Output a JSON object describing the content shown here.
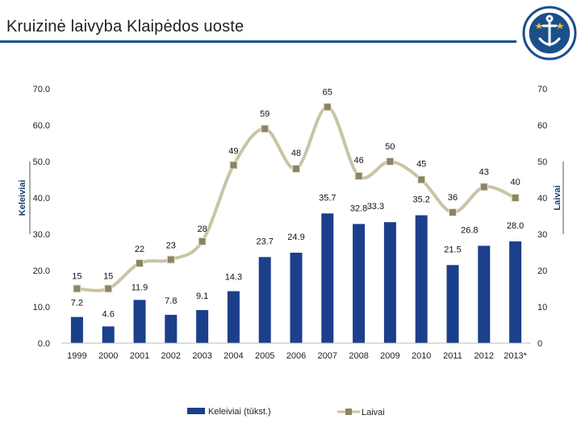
{
  "title": "Kruizinė laivyba Klaipėdos uoste",
  "colors": {
    "title_rule": "#1a4f8a",
    "bars": "#1b3f8b",
    "line": "#c9c4a6",
    "markers": "#8a8566",
    "logo": "#1a4f8a"
  },
  "logo": {
    "name": "klaipeda-port-emblem"
  },
  "chart_data": {
    "type": "bar+line",
    "categories": [
      "1999",
      "2000",
      "2001",
      "2002",
      "2003",
      "2004",
      "2005",
      "2006",
      "2007",
      "2008",
      "2009",
      "2010",
      "2011",
      "2012",
      "2013*"
    ],
    "series": [
      {
        "name": "Keleiviai (tūkst.)",
        "type": "bar",
        "axis": "left",
        "values": [
          7.2,
          4.6,
          11.9,
          7.8,
          9.1,
          14.3,
          23.7,
          24.9,
          35.7,
          32.8,
          33.3,
          35.2,
          21.5,
          26.8,
          28.0
        ],
        "labels": [
          "7.2",
          "4.6",
          "11.9",
          "7.8",
          "9.1",
          "14.3",
          "23.7",
          "24.9",
          "35.7",
          "32.8",
          "33.3",
          "35.2",
          "21.5",
          "26.8",
          "28.0"
        ]
      },
      {
        "name": "Laivai",
        "type": "line",
        "axis": "right",
        "values": [
          15,
          15,
          22,
          23,
          28,
          49,
          59,
          48,
          65,
          46,
          50,
          45,
          36,
          43,
          40
        ],
        "labels": [
          "15",
          "15",
          "22",
          "23",
          "28",
          "49",
          "59",
          "48",
          "65",
          "46",
          "50",
          "45",
          "36",
          "43",
          "40"
        ]
      }
    ],
    "y_left": {
      "label": "Keleiviai",
      "range": [
        0,
        70
      ],
      "ticks": [
        "0.0",
        "10.0",
        "20.0",
        "30.0",
        "40.0",
        "50.0",
        "60.0",
        "70.0"
      ]
    },
    "y_right": {
      "label": "Laivai",
      "range": [
        0,
        70
      ],
      "ticks": [
        "0",
        "10",
        "20",
        "30",
        "40",
        "50",
        "60",
        "70"
      ]
    },
    "legend": {
      "position": "bottom",
      "items": [
        "Keleiviai (tūkst.)",
        "Laivai"
      ]
    }
  }
}
